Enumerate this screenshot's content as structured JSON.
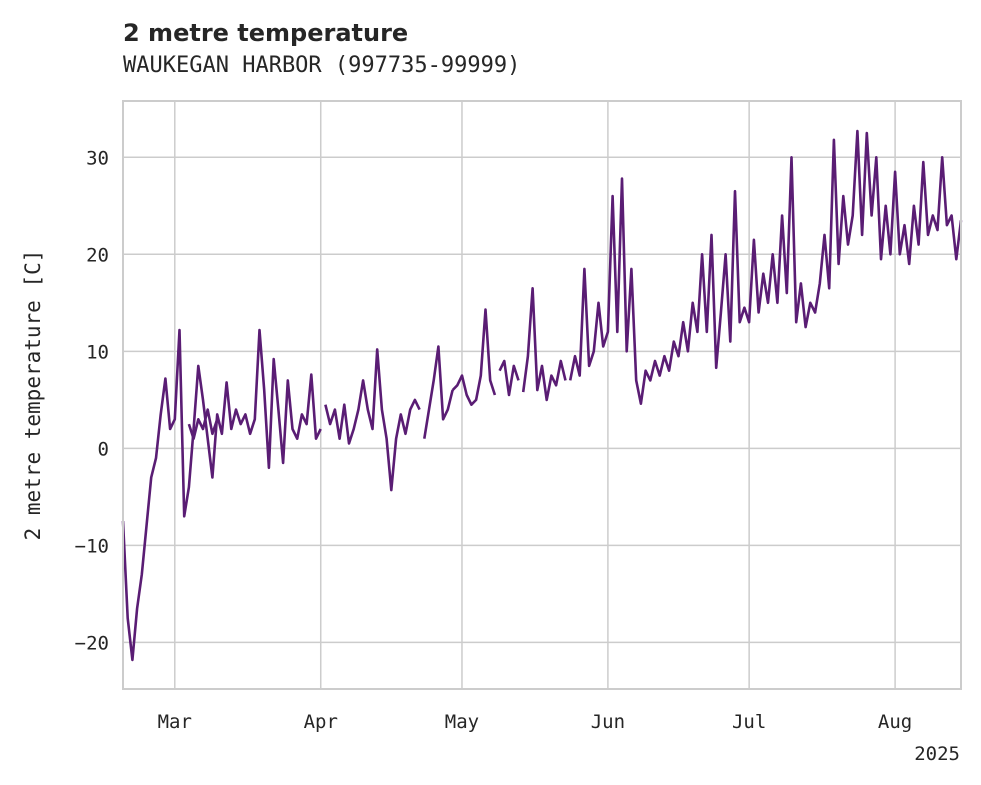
{
  "chart_data": {
    "type": "line",
    "title": "2 metre temperature",
    "subtitle": "WAUKEGAN HARBOR (997735-99999)",
    "ylabel": "2 metre temperature [C]",
    "xlabel": "",
    "year_label": "2025",
    "xlim": [
      "2025-02-18",
      "2025-08-15"
    ],
    "ylim": [
      -24.8,
      35.8
    ],
    "grid": true,
    "x_ticks": [
      {
        "date": "2025-03-01",
        "label": "Mar"
      },
      {
        "date": "2025-04-01",
        "label": "Apr"
      },
      {
        "date": "2025-05-01",
        "label": "May"
      },
      {
        "date": "2025-06-01",
        "label": "Jun"
      },
      {
        "date": "2025-07-01",
        "label": "Jul"
      },
      {
        "date": "2025-08-01",
        "label": "Aug"
      }
    ],
    "y_ticks": [
      {
        "value": 30,
        "label": "30"
      },
      {
        "value": 20,
        "label": "20"
      },
      {
        "value": 10,
        "label": "10"
      },
      {
        "value": 0,
        "label": "0"
      },
      {
        "value": -10,
        "label": "−10"
      },
      {
        "value": -20,
        "label": "−20"
      }
    ],
    "series": [
      {
        "color": "#5a1d74",
        "segments": [
          [
            [
              "2025-02-18",
              -7.5
            ],
            [
              "2025-02-19",
              -17.5
            ],
            [
              "2025-02-20",
              -21.8
            ],
            [
              "2025-02-21",
              -16.5
            ],
            [
              "2025-02-22",
              -13.0
            ],
            [
              "2025-02-23",
              -8.0
            ],
            [
              "2025-02-24",
              -3.0
            ],
            [
              "2025-02-25",
              -1.0
            ],
            [
              "2025-02-26",
              3.5
            ],
            [
              "2025-02-27",
              7.2
            ],
            [
              "2025-02-28",
              2.0
            ],
            [
              "2025-03-01",
              3.0
            ],
            [
              "2025-03-02",
              12.2
            ],
            [
              "2025-03-03",
              -7.0
            ],
            [
              "2025-03-04",
              -4.0
            ],
            [
              "2025-03-05",
              2.0
            ],
            [
              "2025-03-06",
              8.5
            ],
            [
              "2025-03-07",
              5.0
            ],
            [
              "2025-03-08",
              1.0
            ],
            [
              "2025-03-09",
              -3.0
            ],
            [
              "2025-03-10",
              3.5
            ],
            [
              "2025-03-11",
              1.5
            ],
            [
              "2025-03-12",
              6.8
            ],
            [
              "2025-03-13",
              2.0
            ],
            [
              "2025-03-14",
              4.0
            ],
            [
              "2025-03-15",
              2.5
            ],
            [
              "2025-03-16",
              3.5
            ],
            [
              "2025-03-17",
              1.5
            ],
            [
              "2025-03-18",
              3.0
            ],
            [
              "2025-03-19",
              12.2
            ],
            [
              "2025-03-20",
              6.0
            ],
            [
              "2025-03-21",
              -2.0
            ],
            [
              "2025-03-22",
              9.2
            ],
            [
              "2025-03-23",
              4.0
            ],
            [
              "2025-03-24",
              -1.5
            ],
            [
              "2025-03-25",
              7.0
            ],
            [
              "2025-03-26",
              2.0
            ],
            [
              "2025-03-27",
              1.0
            ],
            [
              "2025-03-28",
              3.5
            ],
            [
              "2025-03-29",
              2.5
            ],
            [
              "2025-03-30",
              7.6
            ],
            [
              "2025-03-31",
              1.0
            ],
            [
              "2025-04-01",
              2.0
            ]
          ],
          [
            [
              "2025-03-04",
              2.5
            ],
            [
              "2025-03-05",
              1.0
            ],
            [
              "2025-03-06",
              3.0
            ],
            [
              "2025-03-07",
              2.0
            ],
            [
              "2025-03-08",
              4.0
            ],
            [
              "2025-03-09",
              1.5
            ],
            [
              "2025-03-10",
              3.0
            ]
          ],
          [
            [
              "2025-04-02",
              4.5
            ],
            [
              "2025-04-03",
              2.5
            ],
            [
              "2025-04-04",
              4.0
            ],
            [
              "2025-04-05",
              1.0
            ],
            [
              "2025-04-06",
              4.5
            ],
            [
              "2025-04-07",
              0.5
            ],
            [
              "2025-04-08",
              2.0
            ],
            [
              "2025-04-09",
              4.0
            ],
            [
              "2025-04-10",
              7.0
            ],
            [
              "2025-04-11",
              4.0
            ],
            [
              "2025-04-12",
              2.0
            ],
            [
              "2025-04-13",
              10.2
            ],
            [
              "2025-04-14",
              4.0
            ],
            [
              "2025-04-15",
              1.0
            ],
            [
              "2025-04-16",
              -4.3
            ],
            [
              "2025-04-17",
              1.0
            ],
            [
              "2025-04-18",
              3.5
            ],
            [
              "2025-04-19",
              1.5
            ],
            [
              "2025-04-20",
              4.0
            ],
            [
              "2025-04-21",
              5.0
            ],
            [
              "2025-04-22",
              4.0
            ]
          ],
          [
            [
              "2025-04-23",
              1.0
            ],
            [
              "2025-04-24",
              4.0
            ],
            [
              "2025-04-25",
              7.0
            ],
            [
              "2025-04-26",
              10.5
            ],
            [
              "2025-04-27",
              3.0
            ],
            [
              "2025-04-28",
              4.0
            ],
            [
              "2025-04-29",
              6.0
            ]
          ],
          [
            [
              "2025-04-29",
              6.0
            ],
            [
              "2025-04-30",
              6.5
            ],
            [
              "2025-05-01",
              7.5
            ],
            [
              "2025-05-02",
              5.5
            ],
            [
              "2025-05-03",
              4.5
            ],
            [
              "2025-05-04",
              5.0
            ],
            [
              "2025-05-05",
              7.5
            ],
            [
              "2025-05-06",
              14.3
            ],
            [
              "2025-05-07",
              7.0
            ],
            [
              "2025-05-08",
              5.5
            ]
          ],
          [
            [
              "2025-05-09",
              8.0
            ],
            [
              "2025-05-10",
              9.0
            ],
            [
              "2025-05-11",
              5.5
            ],
            [
              "2025-05-12",
              8.5
            ],
            [
              "2025-05-13",
              7.0
            ]
          ],
          [
            [
              "2025-05-14",
              5.8
            ],
            [
              "2025-05-15",
              9.5
            ],
            [
              "2025-05-16",
              16.5
            ],
            [
              "2025-05-17",
              6.0
            ],
            [
              "2025-05-18",
              8.5
            ],
            [
              "2025-05-19",
              5.0
            ],
            [
              "2025-05-20",
              7.5
            ],
            [
              "2025-05-21",
              6.5
            ],
            [
              "2025-05-22",
              9.0
            ],
            [
              "2025-05-23",
              7.0
            ]
          ],
          [
            [
              "2025-05-24",
              7.0
            ],
            [
              "2025-05-25",
              9.5
            ],
            [
              "2025-05-26",
              7.5
            ],
            [
              "2025-05-27",
              18.5
            ],
            [
              "2025-05-28",
              8.5
            ],
            [
              "2025-05-29",
              10.0
            ],
            [
              "2025-05-30",
              15.0
            ],
            [
              "2025-05-31",
              10.5
            ],
            [
              "2025-06-01",
              12.0
            ],
            [
              "2025-06-02",
              26.0
            ],
            [
              "2025-06-03",
              12.0
            ],
            [
              "2025-06-04",
              27.8
            ],
            [
              "2025-06-05",
              10.0
            ],
            [
              "2025-06-06",
              18.5
            ],
            [
              "2025-06-07",
              7.0
            ],
            [
              "2025-06-08",
              4.6
            ],
            [
              "2025-06-09",
              8.0
            ],
            [
              "2025-06-10",
              7.0
            ],
            [
              "2025-06-11",
              9.0
            ],
            [
              "2025-06-12",
              7.5
            ],
            [
              "2025-06-13",
              9.5
            ],
            [
              "2025-06-14",
              8.0
            ],
            [
              "2025-06-15",
              11.0
            ],
            [
              "2025-06-16",
              9.5
            ],
            [
              "2025-06-17",
              13.0
            ],
            [
              "2025-06-18",
              10.0
            ],
            [
              "2025-06-19",
              15.0
            ],
            [
              "2025-06-20",
              12.0
            ],
            [
              "2025-06-21",
              20.0
            ],
            [
              "2025-06-22",
              12.0
            ],
            [
              "2025-06-23",
              22.0
            ],
            [
              "2025-06-24",
              8.3
            ],
            [
              "2025-06-25",
              14.0
            ],
            [
              "2025-06-26",
              20.0
            ],
            [
              "2025-06-27",
              11.0
            ],
            [
              "2025-06-28",
              26.5
            ],
            [
              "2025-06-29",
              13.0
            ],
            [
              "2025-06-30",
              14.5
            ],
            [
              "2025-07-01",
              13.0
            ],
            [
              "2025-07-02",
              21.5
            ],
            [
              "2025-07-03",
              14.0
            ],
            [
              "2025-07-04",
              18.0
            ],
            [
              "2025-07-05",
              15.0
            ],
            [
              "2025-07-06",
              20.0
            ],
            [
              "2025-07-07",
              15.0
            ],
            [
              "2025-07-08",
              24.0
            ],
            [
              "2025-07-09",
              16.0
            ],
            [
              "2025-07-10",
              30.0
            ],
            [
              "2025-07-11",
              13.0
            ],
            [
              "2025-07-12",
              17.0
            ],
            [
              "2025-07-13",
              12.5
            ],
            [
              "2025-07-14",
              15.0
            ],
            [
              "2025-07-15",
              14.0
            ],
            [
              "2025-07-16",
              17.0
            ],
            [
              "2025-07-17",
              22.0
            ],
            [
              "2025-07-18",
              16.5
            ],
            [
              "2025-07-19",
              31.8
            ],
            [
              "2025-07-20",
              19.0
            ],
            [
              "2025-07-21",
              26.0
            ],
            [
              "2025-07-22",
              21.0
            ],
            [
              "2025-07-23",
              24.0
            ],
            [
              "2025-07-24",
              32.7
            ],
            [
              "2025-07-25",
              22.0
            ],
            [
              "2025-07-26",
              32.5
            ],
            [
              "2025-07-27",
              24.0
            ],
            [
              "2025-07-28",
              30.0
            ],
            [
              "2025-07-29",
              19.5
            ],
            [
              "2025-07-30",
              25.0
            ],
            [
              "2025-07-31",
              20.0
            ],
            [
              "2025-08-01",
              28.5
            ],
            [
              "2025-08-02",
              20.0
            ],
            [
              "2025-08-03",
              23.0
            ],
            [
              "2025-08-04",
              19.0
            ],
            [
              "2025-08-05",
              25.0
            ],
            [
              "2025-08-06",
              21.0
            ],
            [
              "2025-08-07",
              29.5
            ],
            [
              "2025-08-08",
              22.0
            ],
            [
              "2025-08-09",
              24.0
            ],
            [
              "2025-08-10",
              22.5
            ],
            [
              "2025-08-11",
              30.0
            ],
            [
              "2025-08-12",
              23.0
            ],
            [
              "2025-08-13",
              24.0
            ],
            [
              "2025-08-14",
              19.5
            ],
            [
              "2025-08-15",
              23.5
            ]
          ]
        ]
      }
    ]
  }
}
